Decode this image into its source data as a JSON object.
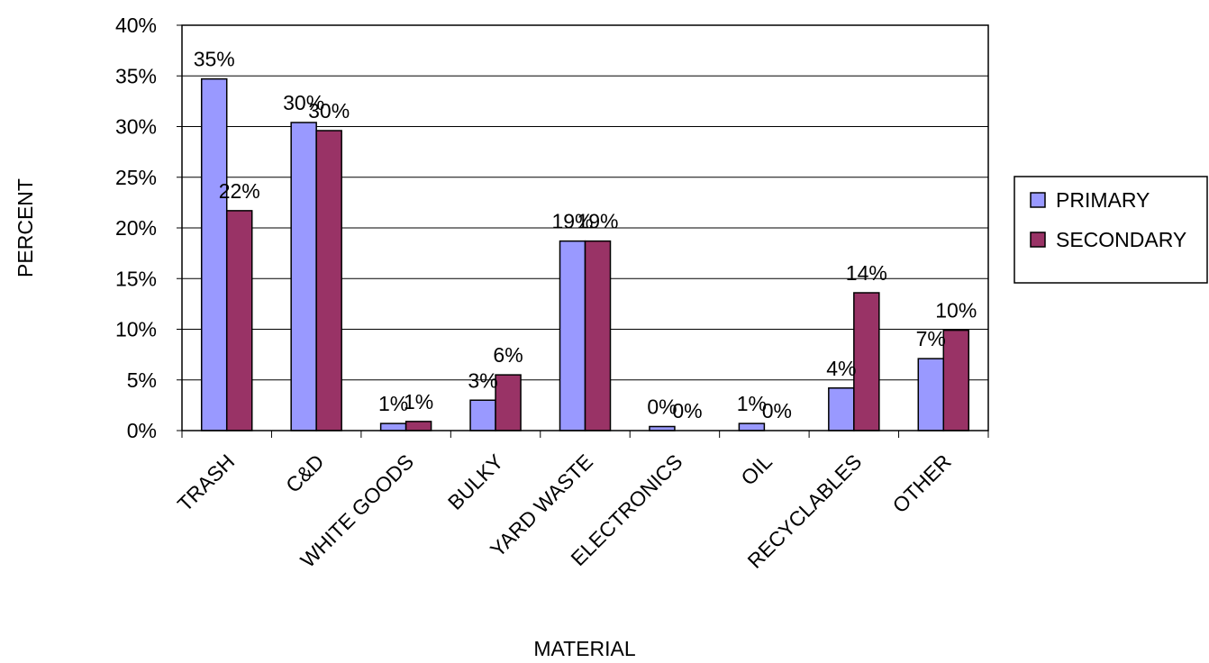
{
  "chart_data": {
    "type": "bar",
    "title": "",
    "xlabel": "MATERIAL",
    "ylabel": "PERCENT",
    "ylim": [
      0,
      40
    ],
    "y_ticks": [
      0,
      5,
      10,
      15,
      20,
      25,
      30,
      35,
      40
    ],
    "y_tick_format": "%",
    "grid": true,
    "legend_position": "right",
    "categories": [
      "TRASH",
      "C&D",
      "WHITE GOODS",
      "BULKY",
      "YARD WASTE",
      "ELECTRONICS",
      "OIL",
      "RECYCLABLES",
      "OTHER"
    ],
    "series": [
      {
        "name": "PRIMARY",
        "color": "#9999ff",
        "values": [
          34.7,
          30.4,
          0.7,
          3.0,
          18.7,
          0.4,
          0.7,
          4.2,
          7.1
        ],
        "labels": [
          "35%",
          "30%",
          "1%",
          "3%",
          "19%",
          "0%",
          "1%",
          "4%",
          "7%"
        ]
      },
      {
        "name": "SECONDARY",
        "color": "#993366",
        "values": [
          21.7,
          29.6,
          0.9,
          5.5,
          18.7,
          0.0,
          0.0,
          13.6,
          9.9
        ],
        "labels": [
          "22%",
          "30%",
          "1%",
          "6%",
          "19%",
          "0%",
          "0%",
          "14%",
          "10%"
        ]
      }
    ]
  }
}
